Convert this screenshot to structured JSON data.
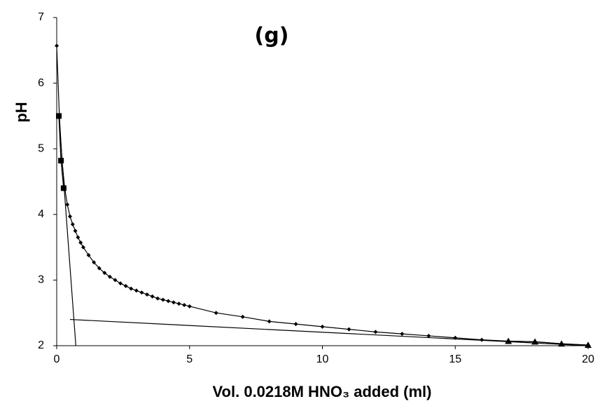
{
  "chart_data": {
    "type": "line",
    "title": "(g)",
    "x_label": "Vol.  0.0218M HNO₃ added (ml)",
    "y_label": "pH",
    "xlim": [
      0,
      20
    ],
    "xticks": [
      0,
      5,
      10,
      15,
      20
    ],
    "ylim": [
      2,
      7
    ],
    "yticks": [
      2,
      3,
      4,
      5,
      6,
      7
    ],
    "grid": false,
    "series": [
      {
        "color": "#000000",
        "marker": "diamond",
        "x": [
          0,
          0.1,
          0.2,
          0.3,
          0.4,
          0.5,
          0.6,
          0.7,
          0.8,
          0.9,
          1.0,
          1.2,
          1.4,
          1.6,
          1.8,
          2.0,
          2.2,
          2.4,
          2.6,
          2.8,
          3.0,
          3.2,
          3.4,
          3.6,
          3.8,
          4.0,
          4.2,
          4.4,
          4.6,
          4.8,
          5.0,
          6,
          7,
          8,
          9,
          10,
          11,
          12,
          13,
          14,
          15,
          16,
          17,
          18,
          19,
          20
        ],
        "values": [
          6.57,
          5.5,
          4.82,
          4.4,
          4.15,
          3.97,
          3.85,
          3.75,
          3.65,
          3.57,
          3.5,
          3.38,
          3.27,
          3.18,
          3.11,
          3.05,
          3.0,
          2.95,
          2.91,
          2.87,
          2.84,
          2.81,
          2.78,
          2.75,
          2.72,
          2.7,
          2.68,
          2.66,
          2.64,
          2.62,
          2.6,
          2.5,
          2.44,
          2.37,
          2.33,
          2.29,
          2.25,
          2.21,
          2.18,
          2.15,
          2.12,
          2.09,
          2.07,
          2.06,
          2.03,
          2.01
        ]
      },
      {
        "color": "#000000",
        "marker": "square",
        "x": [
          0.08,
          0.16,
          0.26
        ],
        "values": [
          5.5,
          4.82,
          4.4
        ]
      },
      {
        "color": "#000000",
        "marker": "triangle",
        "x": [
          17,
          18,
          19,
          20
        ],
        "values": [
          2.07,
          2.06,
          2.03,
          2.01
        ]
      },
      {
        "color": "#000000",
        "marker": "none",
        "x": [
          0.08,
          0.72
        ],
        "values": [
          5.5,
          2.0
        ]
      },
      {
        "color": "#000000",
        "marker": "none",
        "x": [
          0.5,
          20
        ],
        "values": [
          2.4,
          2.0
        ]
      }
    ]
  }
}
